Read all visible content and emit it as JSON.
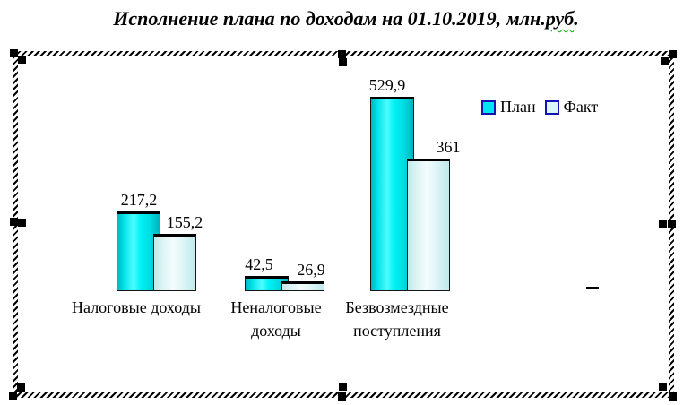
{
  "title": {
    "prefix": "Исполнение плана по доходам на 01.10.2019, млн.",
    "misspelled": "руб",
    "suffix": "."
  },
  "chart_data": {
    "type": "bar",
    "title": "Исполнение плана по доходам на 01.10.2019, млн.руб.",
    "categories": [
      "Налоговые доходы",
      "Неналоговые доходы",
      "Безвозмездные поступления"
    ],
    "series": [
      {
        "name": "План",
        "values": [
          217.2,
          42.5,
          529.9
        ],
        "labels": [
          "217,2",
          "42,5",
          "529,9"
        ],
        "color": "#00e6ee"
      },
      {
        "name": "Факт",
        "values": [
          155.2,
          26.9,
          361
        ],
        "labels": [
          "155,2",
          "26,9",
          "361"
        ],
        "color": "#dcf7f7"
      }
    ],
    "value_unit": "млн.руб.",
    "ylim": [
      0,
      560
    ],
    "grid": false,
    "legend_position": "right",
    "data_labels_shown": true
  },
  "legend": {
    "items": [
      {
        "label": "План",
        "color": "#00e6ee",
        "border": "#1414b4"
      },
      {
        "label": "Факт",
        "color": "#dcf7f7",
        "border": "#1414b4"
      }
    ]
  },
  "selection": {
    "handle_color": "#000000"
  }
}
